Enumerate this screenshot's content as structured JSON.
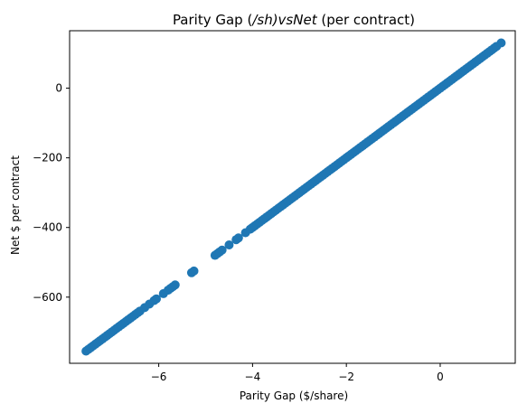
{
  "chart_data": {
    "type": "scatter",
    "title": "Parity Gap ($/sh) vs Net $ (per contract)",
    "title_render": {
      "part1": "Parity Gap (",
      "part2": "/sh)vsNet",
      "part3": " (per contract)"
    },
    "xlabel": "Parity Gap ($/share)",
    "ylabel": "Net $ per contract",
    "xlim": [
      -7.9,
      1.6
    ],
    "ylim": [
      -790,
      165
    ],
    "xticks": [
      -6,
      -4,
      -2,
      0
    ],
    "xtick_labels": [
      "−6",
      "−4",
      "−2",
      "0"
    ],
    "yticks": [
      -600,
      -400,
      -200,
      0
    ],
    "ytick_labels": [
      "−600",
      "−400",
      "−200",
      "0"
    ],
    "grid": false,
    "marker_color": "#1f77b4",
    "series": [
      {
        "x": [
          -7.55,
          -7.5,
          -7.45,
          -7.4,
          -7.35,
          -7.3,
          -7.25,
          -7.2,
          -7.15,
          -7.1,
          -7.05,
          -7.0,
          -6.95,
          -6.9,
          -6.85,
          -6.8,
          -6.75,
          -6.7,
          -6.65,
          -6.6,
          -6.55,
          -6.5,
          -6.45,
          -6.4,
          -6.3,
          -6.2,
          -6.1,
          -6.05,
          -5.9,
          -5.8,
          -5.75,
          -5.7,
          -5.65,
          -5.3,
          -5.25,
          -4.8,
          -4.75,
          -4.7,
          -4.65,
          -4.5,
          -4.35,
          -4.3,
          -4.15,
          -4.05,
          -4.0,
          -3.95,
          -3.9,
          -3.85,
          -3.8,
          -3.75,
          -3.7,
          -3.65,
          -3.6,
          -3.55,
          -3.5,
          -3.45,
          -3.4,
          -3.35,
          -3.3,
          -3.25,
          -3.2,
          -3.15,
          -3.1,
          -3.05,
          -3.0,
          -2.95,
          -2.9,
          -2.85,
          -2.8,
          -2.75,
          -2.7,
          -2.65,
          -2.6,
          -2.55,
          -2.5,
          -2.45,
          -2.4,
          -2.35,
          -2.3,
          -2.25,
          -2.2,
          -2.15,
          -2.1,
          -2.05,
          -2.0,
          -1.95,
          -1.9,
          -1.85,
          -1.8,
          -1.75,
          -1.7,
          -1.65,
          -1.6,
          -1.55,
          -1.5,
          -1.45,
          -1.4,
          -1.35,
          -1.3,
          -1.25,
          -1.2,
          -1.15,
          -1.1,
          -1.05,
          -1.0,
          -0.95,
          -0.9,
          -0.85,
          -0.8,
          -0.75,
          -0.7,
          -0.65,
          -0.6,
          -0.55,
          -0.5,
          -0.45,
          -0.4,
          -0.35,
          -0.3,
          -0.25,
          -0.2,
          -0.15,
          -0.1,
          -0.05,
          0.0,
          0.05,
          0.1,
          0.15,
          0.2,
          0.25,
          0.3,
          0.35,
          0.4,
          0.45,
          0.5,
          0.55,
          0.6,
          0.65,
          0.7,
          0.75,
          0.8,
          0.85,
          0.9,
          0.95,
          1.0,
          1.05,
          1.1,
          1.15,
          1.2,
          1.3
        ],
        "y": [
          -755,
          -750,
          -745,
          -740,
          -735,
          -730,
          -725,
          -720,
          -715,
          -710,
          -705,
          -700,
          -695,
          -690,
          -685,
          -680,
          -675,
          -670,
          -665,
          -660,
          -655,
          -650,
          -645,
          -640,
          -630,
          -620,
          -610,
          -605,
          -590,
          -580,
          -575,
          -570,
          -565,
          -530,
          -525,
          -480,
          -475,
          -470,
          -465,
          -450,
          -435,
          -430,
          -415,
          -405,
          -400,
          -395,
          -390,
          -385,
          -380,
          -375,
          -370,
          -365,
          -360,
          -355,
          -350,
          -345,
          -340,
          -335,
          -330,
          -325,
          -320,
          -315,
          -310,
          -305,
          -300,
          -295,
          -290,
          -285,
          -280,
          -275,
          -270,
          -265,
          -260,
          -255,
          -250,
          -245,
          -240,
          -235,
          -230,
          -225,
          -220,
          -215,
          -210,
          -205,
          -200,
          -195,
          -190,
          -185,
          -180,
          -175,
          -170,
          -165,
          -160,
          -155,
          -150,
          -145,
          -140,
          -135,
          -130,
          -125,
          -120,
          -115,
          -110,
          -105,
          -100,
          -95,
          -90,
          -85,
          -80,
          -75,
          -70,
          -65,
          -60,
          -55,
          -50,
          -45,
          -40,
          -35,
          -30,
          -25,
          -20,
          -15,
          -10,
          -5,
          0,
          5,
          10,
          15,
          20,
          25,
          30,
          35,
          40,
          45,
          50,
          55,
          60,
          65,
          70,
          75,
          80,
          85,
          90,
          95,
          100,
          105,
          110,
          115,
          120,
          130
        ]
      }
    ]
  }
}
